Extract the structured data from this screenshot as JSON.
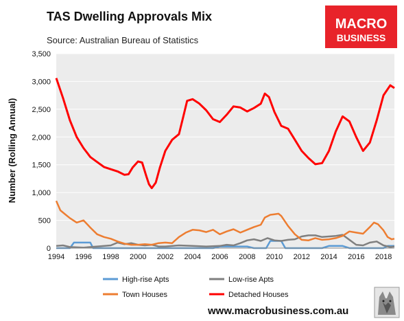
{
  "branding": {
    "logo_line1": "MACRO",
    "logo_line2": "BUSINESS",
    "logo_color": "#e8232a",
    "website": "www.macrobusiness.com.au",
    "mascot": "wolf-mascot-icon"
  },
  "chart_data": {
    "type": "line",
    "title": "TAS Dwelling Approvals Mix",
    "subtitle": "Source: Australian Bureau of Statistics",
    "xlabel": "",
    "ylabel": "Number (Rolling Annual)",
    "xlim": [
      1994,
      2018.8
    ],
    "ylim": [
      0,
      3500
    ],
    "x_ticks": [
      "1994",
      "1996",
      "1998",
      "2000",
      "2002",
      "2004",
      "2006",
      "2008",
      "2010",
      "2012",
      "2014",
      "2016",
      "2018"
    ],
    "y_ticks": [
      "0",
      "500",
      "1,000",
      "1,500",
      "2,000",
      "2,500",
      "3,000",
      "3,500"
    ],
    "grid": "horizontal",
    "plot_background": "#ececec",
    "legend_position": "bottom",
    "series": [
      {
        "name": "High-rise Apts",
        "color": "#5b9bd5",
        "points": [
          [
            1994.0,
            0
          ],
          [
            1995.0,
            0
          ],
          [
            1995.3,
            100
          ],
          [
            1996.5,
            100
          ],
          [
            1996.7,
            0
          ],
          [
            2005.5,
            0
          ],
          [
            2006.0,
            30
          ],
          [
            2008.0,
            30
          ],
          [
            2008.5,
            0
          ],
          [
            2009.4,
            0
          ],
          [
            2009.7,
            130
          ],
          [
            2010.5,
            130
          ],
          [
            2010.8,
            0
          ],
          [
            2013.5,
            0
          ],
          [
            2014.0,
            40
          ],
          [
            2015.0,
            40
          ],
          [
            2015.5,
            0
          ],
          [
            2018.0,
            0
          ],
          [
            2018.3,
            40
          ],
          [
            2018.8,
            40
          ]
        ]
      },
      {
        "name": "Low-rise Apts",
        "color": "#7f7f7f",
        "points": [
          [
            1994.0,
            40
          ],
          [
            1994.5,
            50
          ],
          [
            1995.0,
            20
          ],
          [
            1996.0,
            10
          ],
          [
            1997.0,
            30
          ],
          [
            1998.0,
            50
          ],
          [
            1998.5,
            100
          ],
          [
            1999.0,
            70
          ],
          [
            1999.5,
            90
          ],
          [
            2000.0,
            60
          ],
          [
            2000.5,
            50
          ],
          [
            2001.0,
            60
          ],
          [
            2001.5,
            30
          ],
          [
            2002.0,
            30
          ],
          [
            2003.0,
            50
          ],
          [
            2004.0,
            40
          ],
          [
            2005.0,
            30
          ],
          [
            2006.0,
            40
          ],
          [
            2006.5,
            60
          ],
          [
            2007.0,
            50
          ],
          [
            2007.5,
            90
          ],
          [
            2008.0,
            140
          ],
          [
            2008.5,
            160
          ],
          [
            2009.0,
            130
          ],
          [
            2009.5,
            180
          ],
          [
            2010.0,
            140
          ],
          [
            2010.5,
            130
          ],
          [
            2011.0,
            150
          ],
          [
            2011.5,
            160
          ],
          [
            2012.0,
            210
          ],
          [
            2012.5,
            230
          ],
          [
            2013.0,
            230
          ],
          [
            2013.5,
            200
          ],
          [
            2014.0,
            210
          ],
          [
            2014.5,
            220
          ],
          [
            2015.0,
            240
          ],
          [
            2015.5,
            150
          ],
          [
            2016.0,
            60
          ],
          [
            2016.5,
            50
          ],
          [
            2017.0,
            100
          ],
          [
            2017.5,
            120
          ],
          [
            2018.0,
            50
          ],
          [
            2018.5,
            20
          ],
          [
            2018.8,
            30
          ]
        ]
      },
      {
        "name": "Town Houses",
        "color": "#ed7d31",
        "points": [
          [
            1994.0,
            850
          ],
          [
            1994.3,
            680
          ],
          [
            1994.7,
            600
          ],
          [
            1995.0,
            540
          ],
          [
            1995.5,
            460
          ],
          [
            1996.0,
            500
          ],
          [
            1996.5,
            370
          ],
          [
            1997.0,
            250
          ],
          [
            1997.5,
            200
          ],
          [
            1998.0,
            170
          ],
          [
            1998.5,
            120
          ],
          [
            1999.0,
            80
          ],
          [
            1999.5,
            60
          ],
          [
            2000.0,
            60
          ],
          [
            2000.5,
            70
          ],
          [
            2001.0,
            60
          ],
          [
            2001.5,
            90
          ],
          [
            2002.0,
            100
          ],
          [
            2002.5,
            90
          ],
          [
            2003.0,
            200
          ],
          [
            2003.5,
            280
          ],
          [
            2004.0,
            330
          ],
          [
            2004.5,
            320
          ],
          [
            2005.0,
            290
          ],
          [
            2005.5,
            330
          ],
          [
            2006.0,
            250
          ],
          [
            2006.5,
            300
          ],
          [
            2007.0,
            340
          ],
          [
            2007.5,
            280
          ],
          [
            2008.0,
            330
          ],
          [
            2008.5,
            380
          ],
          [
            2009.0,
            420
          ],
          [
            2009.3,
            550
          ],
          [
            2009.7,
            600
          ],
          [
            2010.0,
            610
          ],
          [
            2010.3,
            620
          ],
          [
            2010.5,
            580
          ],
          [
            2011.0,
            400
          ],
          [
            2011.5,
            250
          ],
          [
            2012.0,
            150
          ],
          [
            2012.5,
            140
          ],
          [
            2013.0,
            180
          ],
          [
            2013.5,
            150
          ],
          [
            2014.0,
            160
          ],
          [
            2014.5,
            180
          ],
          [
            2015.0,
            220
          ],
          [
            2015.5,
            300
          ],
          [
            2016.0,
            280
          ],
          [
            2016.5,
            260
          ],
          [
            2017.0,
            380
          ],
          [
            2017.3,
            460
          ],
          [
            2017.6,
            430
          ],
          [
            2018.0,
            320
          ],
          [
            2018.3,
            200
          ],
          [
            2018.6,
            160
          ],
          [
            2018.8,
            170
          ]
        ]
      },
      {
        "name": "Detached Houses",
        "color": "#ff0000",
        "points": [
          [
            1994.0,
            3060
          ],
          [
            1994.5,
            2700
          ],
          [
            1995.0,
            2300
          ],
          [
            1995.5,
            2000
          ],
          [
            1996.0,
            1800
          ],
          [
            1996.5,
            1640
          ],
          [
            1997.0,
            1550
          ],
          [
            1997.5,
            1460
          ],
          [
            1998.0,
            1420
          ],
          [
            1998.5,
            1380
          ],
          [
            1999.0,
            1320
          ],
          [
            1999.3,
            1330
          ],
          [
            1999.6,
            1450
          ],
          [
            2000.0,
            1560
          ],
          [
            2000.3,
            1540
          ],
          [
            2000.6,
            1300
          ],
          [
            2000.8,
            1150
          ],
          [
            2001.0,
            1080
          ],
          [
            2001.3,
            1180
          ],
          [
            2001.6,
            1450
          ],
          [
            2002.0,
            1750
          ],
          [
            2002.5,
            1950
          ],
          [
            2003.0,
            2050
          ],
          [
            2003.3,
            2350
          ],
          [
            2003.6,
            2650
          ],
          [
            2004.0,
            2680
          ],
          [
            2004.5,
            2600
          ],
          [
            2005.0,
            2480
          ],
          [
            2005.5,
            2320
          ],
          [
            2006.0,
            2270
          ],
          [
            2006.5,
            2400
          ],
          [
            2007.0,
            2550
          ],
          [
            2007.5,
            2530
          ],
          [
            2008.0,
            2460
          ],
          [
            2008.5,
            2520
          ],
          [
            2009.0,
            2600
          ],
          [
            2009.3,
            2780
          ],
          [
            2009.6,
            2720
          ],
          [
            2010.0,
            2450
          ],
          [
            2010.5,
            2200
          ],
          [
            2011.0,
            2150
          ],
          [
            2011.5,
            1950
          ],
          [
            2012.0,
            1750
          ],
          [
            2012.5,
            1620
          ],
          [
            2013.0,
            1510
          ],
          [
            2013.5,
            1530
          ],
          [
            2014.0,
            1750
          ],
          [
            2014.5,
            2100
          ],
          [
            2015.0,
            2370
          ],
          [
            2015.5,
            2280
          ],
          [
            2016.0,
            2000
          ],
          [
            2016.5,
            1750
          ],
          [
            2017.0,
            1900
          ],
          [
            2017.5,
            2300
          ],
          [
            2018.0,
            2750
          ],
          [
            2018.5,
            2930
          ],
          [
            2018.8,
            2880
          ]
        ]
      }
    ]
  }
}
